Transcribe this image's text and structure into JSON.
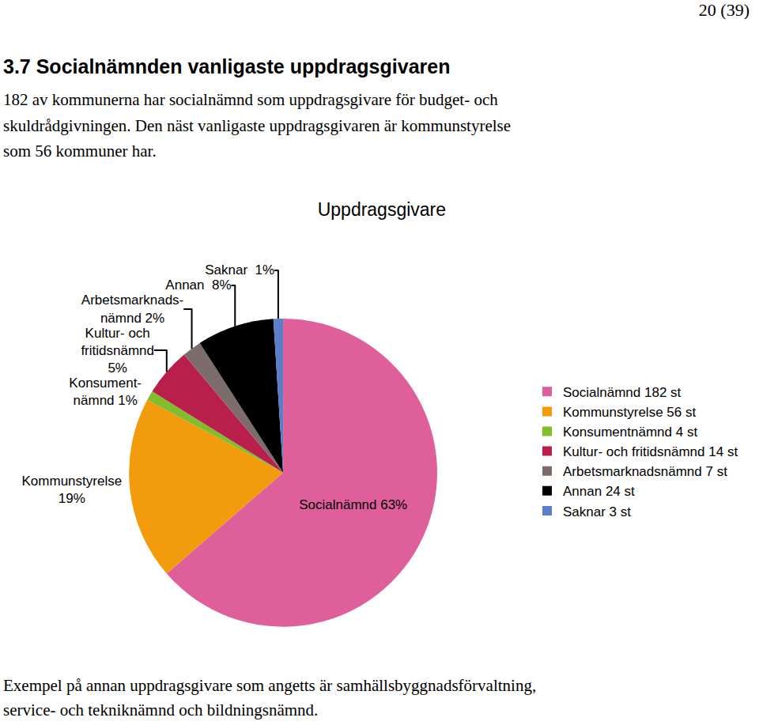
{
  "page_number": "20 (39)",
  "heading": "3.7  Socialnämnden vanligaste uppdragsgivaren",
  "paragraph": [
    "182 av kommunerna har socialnämnd som uppdragsgivare för budget- och",
    "skuldrådgivningen. Den näst vanligaste uppdragsgivaren är kommunstyrelse",
    "som 56 kommuner har."
  ],
  "chart_data": {
    "type": "pie",
    "title": "Uppdragsgivare",
    "categories": [
      "Socialnämnd 182 st",
      "Kommunstyrelse 56 st",
      "Konsumentnämnd 4 st",
      "Kultur- och fritidsnämnd 14 st",
      "Arbetsmarknadsnämnd 7 st",
      "Annan 24 st",
      "Saknar 3 st"
    ],
    "values": [
      63,
      19,
      1,
      5,
      2,
      8,
      1
    ],
    "value_labels": [
      "Socialnämnd 63%",
      "Kommunstyrelse\n19%",
      "Konsument-\nnämnd 1%",
      "Kultur- och\nfritidsnämnd\n5%",
      "Arbetsmarknads-\nnämnd 2%",
      "Annan  8%",
      "Saknar  1%"
    ],
    "colors": [
      "#df5f9b",
      "#f29b0c",
      "#82bd2e",
      "#b91f4b",
      "#7d6c6c",
      "#000000",
      "#5a7fc6"
    ],
    "data_labels": true,
    "legend": "right"
  },
  "footnote": [
    "Exempel på annan uppdragsgivare som angetts är samhällsbyggnadsförvaltning,",
    "service- och tekniknämnd och bildningsnämnd."
  ]
}
